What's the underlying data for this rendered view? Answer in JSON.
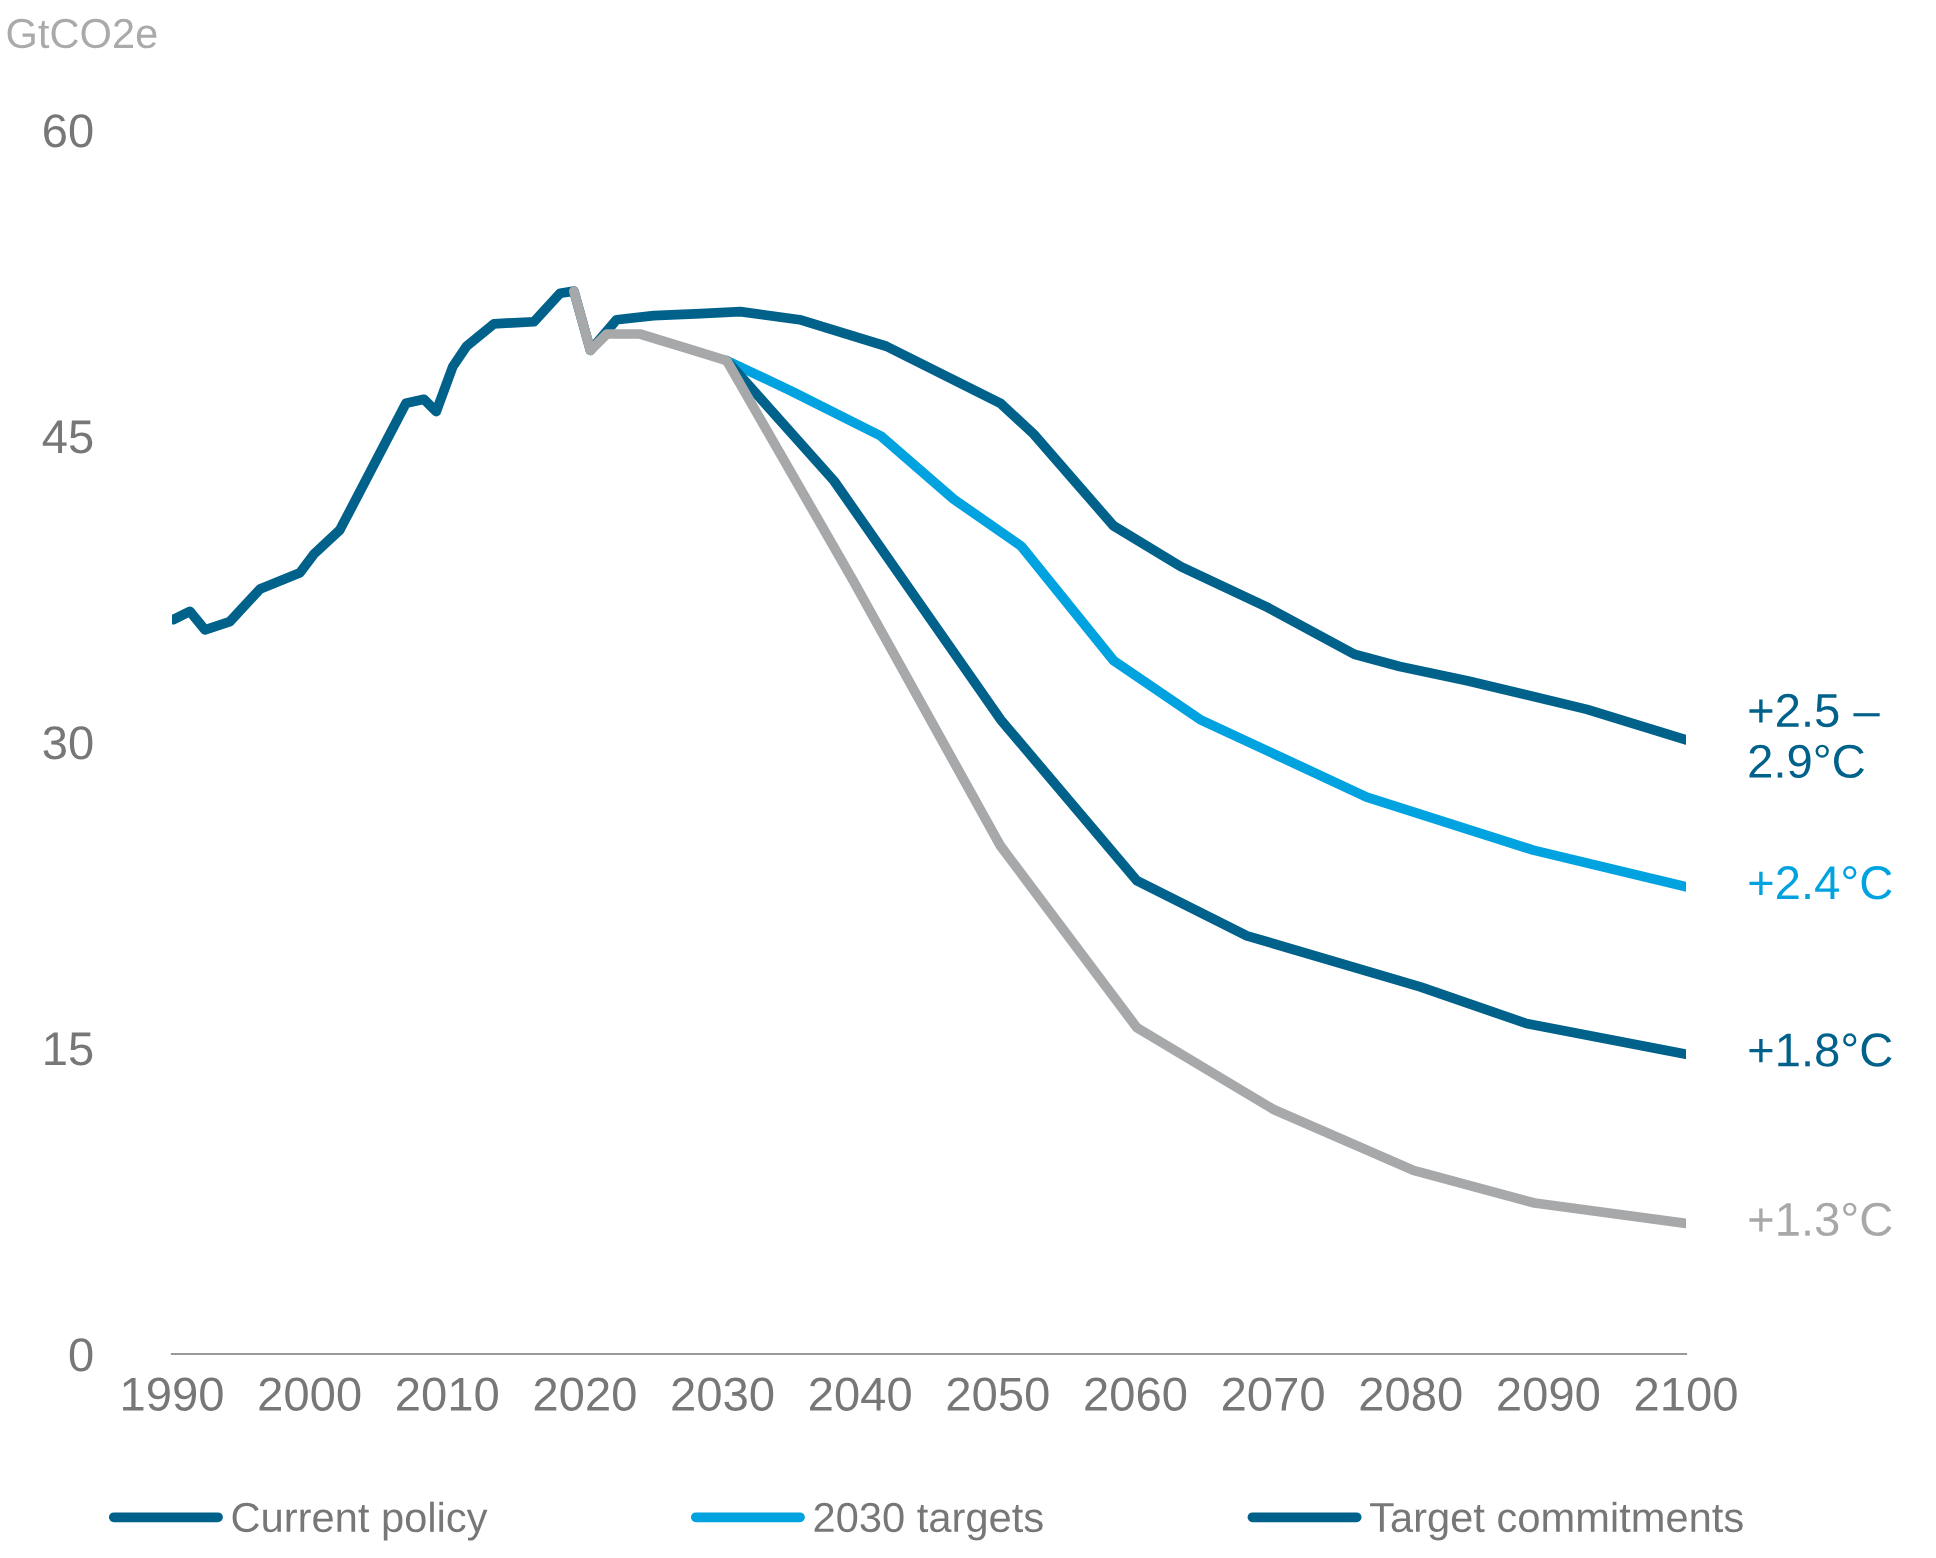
{
  "chart_data": {
    "type": "line",
    "ylabel": "GtCO2e",
    "xlim": [
      1990,
      2100
    ],
    "ylim": [
      0,
      60
    ],
    "xticks": [
      1990,
      2000,
      2010,
      2020,
      2030,
      2040,
      2050,
      2060,
      2070,
      2080,
      2090,
      2100
    ],
    "yticks": [
      0,
      15,
      30,
      45,
      60
    ],
    "grid": false,
    "legend": "bottom",
    "marker": "none",
    "line_style": "solid",
    "series": [
      {
        "name": "Current policy",
        "color": "#00628a",
        "x": [
          1990.1,
          1991.3,
          1992.4,
          1994.2,
          1996.4,
          1999.3,
          2000.3,
          2002.2,
          2004.6,
          2007.0,
          2008.3,
          2009.2,
          2010.4,
          2011.4,
          2013.4,
          2016.3,
          2018.2,
          2019.2,
          2020.4,
          2022.3,
          2025.0,
          2028.4,
          2031.3,
          2035.6,
          2041.9,
          2050.2,
          2052.6,
          2058.4,
          2063.3,
          2069.6,
          2075.9,
          2079.2,
          2084.1,
          2092.8,
          2100
        ],
        "values": [
          36.0,
          36.4,
          35.5,
          35.9,
          37.5,
          38.3,
          39.2,
          40.4,
          43.5,
          46.6,
          46.8,
          46.2,
          48.4,
          49.4,
          50.5,
          50.6,
          52.0,
          52.1,
          49.2,
          50.7,
          50.9,
          51.0,
          51.1,
          50.7,
          49.4,
          46.6,
          45.1,
          40.6,
          38.6,
          36.6,
          34.3,
          33.7,
          33.0,
          31.6,
          30.1
        ]
      },
      {
        "name": "2030 targets",
        "color": "#00a3e0",
        "x": [
          2030.3,
          2035.0,
          2041.5,
          2046.8,
          2051.7,
          2058.4,
          2064.7,
          2076.8,
          2088.9,
          2100
        ],
        "values": [
          48.7,
          47.2,
          45.0,
          41.9,
          39.6,
          34.0,
          31.1,
          27.3,
          24.7,
          22.9
        ]
      },
      {
        "name": "Target commitments",
        "color": "#00628a",
        "x": [
          2030.3,
          2038.1,
          2050.2,
          2060.1,
          2068.1,
          2080.7,
          2088.4,
          2100
        ],
        "values": [
          48.7,
          42.8,
          31.1,
          23.2,
          20.5,
          18.0,
          16.2,
          14.7
        ]
      },
      {
        "color": "#a7a8aa",
        "x": [
          2019.2,
          2020.4,
          2021.6,
          2024.0,
          2027.9,
          2030.3,
          2039.5,
          2050.2,
          2060.1,
          2070.0,
          2080.2,
          2089.0,
          2100
        ],
        "values": [
          52.1,
          49.2,
          50.0,
          50.0,
          49.2,
          48.7,
          37.9,
          24.9,
          16.0,
          12.0,
          9.0,
          7.4,
          6.4
        ]
      }
    ],
    "annotations": [
      "+2.5 –\n2.9°C",
      "+2.4°C",
      "+1.8°C",
      "+1.3°C"
    ]
  }
}
